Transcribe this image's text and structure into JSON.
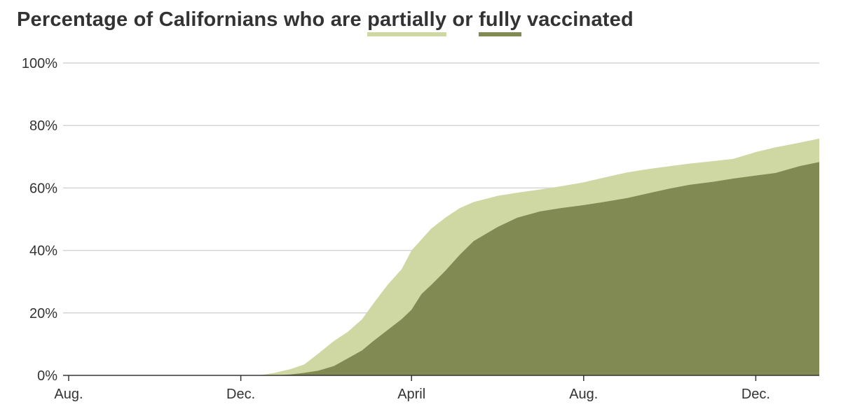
{
  "title": {
    "prefix": "Percentage of Californians who are ",
    "partial_word": "partially",
    "middle": " or ",
    "full_word": "fully",
    "suffix": " vaccinated"
  },
  "colors": {
    "partial": "#cfd8a2",
    "full": "#808a52",
    "grid": "#d4d4d4",
    "axis": "#333333",
    "text": "#333333"
  },
  "chart_data": {
    "type": "area",
    "title": "Percentage of Californians who are partially or fully vaccinated",
    "xlabel": "",
    "ylabel": "",
    "x_ticks": [
      {
        "label": "Aug.",
        "date": "2020-08-01"
      },
      {
        "label": "Dec.",
        "date": "2020-12-01"
      },
      {
        "label": "April",
        "date": "2021-04-01"
      },
      {
        "label": "Aug.",
        "date": "2021-08-01"
      },
      {
        "label": "Dec.",
        "date": "2021-12-01"
      }
    ],
    "y_ticks": [
      "0%",
      "20%",
      "40%",
      "60%",
      "80%",
      "100%"
    ],
    "ylim": [
      0,
      100
    ],
    "xlim": [
      "2020-08-01",
      "2022-01-15"
    ],
    "grid": true,
    "legend": "inline in title (underlined words)",
    "series": [
      {
        "name": "partially",
        "x": [
          "2020-12-15",
          "2020-12-25",
          "2021-01-05",
          "2021-01-15",
          "2021-01-25",
          "2021-02-05",
          "2021-02-15",
          "2021-02-25",
          "2021-03-05",
          "2021-03-15",
          "2021-03-25",
          "2021-04-01",
          "2021-04-08",
          "2021-04-15",
          "2021-04-25",
          "2021-05-05",
          "2021-05-15",
          "2021-06-01",
          "2021-06-15",
          "2021-07-01",
          "2021-07-15",
          "2021-08-01",
          "2021-08-15",
          "2021-09-01",
          "2021-09-15",
          "2021-10-01",
          "2021-10-15",
          "2021-11-01",
          "2021-11-15",
          "2021-12-01",
          "2021-12-15",
          "2022-01-01",
          "2022-01-15"
        ],
        "values": [
          0.1,
          0.8,
          2.0,
          3.5,
          7.0,
          11.0,
          14.0,
          18.0,
          23.0,
          29.0,
          34.0,
          40.0,
          43.5,
          47.0,
          50.5,
          53.5,
          55.5,
          57.5,
          58.5,
          59.5,
          60.5,
          61.8,
          63.3,
          65.0,
          66.0,
          67.0,
          67.8,
          68.6,
          69.3,
          71.5,
          73.0,
          74.5,
          75.8
        ]
      },
      {
        "name": "fully",
        "x": [
          "2020-12-25",
          "2021-01-05",
          "2021-01-15",
          "2021-01-25",
          "2021-02-05",
          "2021-02-15",
          "2021-02-25",
          "2021-03-05",
          "2021-03-15",
          "2021-03-25",
          "2021-04-01",
          "2021-04-08",
          "2021-04-15",
          "2021-04-25",
          "2021-05-05",
          "2021-05-15",
          "2021-06-01",
          "2021-06-15",
          "2021-07-01",
          "2021-07-15",
          "2021-08-01",
          "2021-08-15",
          "2021-09-01",
          "2021-09-15",
          "2021-10-01",
          "2021-10-15",
          "2021-11-01",
          "2021-11-15",
          "2021-12-01",
          "2021-12-15",
          "2022-01-01",
          "2022-01-15"
        ],
        "values": [
          0.0,
          0.3,
          0.8,
          1.5,
          3.0,
          5.5,
          8.0,
          11.0,
          14.5,
          18.0,
          21.0,
          26.0,
          29.0,
          33.5,
          38.5,
          43.0,
          47.5,
          50.5,
          52.5,
          53.5,
          54.5,
          55.5,
          56.8,
          58.2,
          59.8,
          61.0,
          62.0,
          63.0,
          64.0,
          64.8,
          67.0,
          68.3
        ]
      }
    ]
  }
}
